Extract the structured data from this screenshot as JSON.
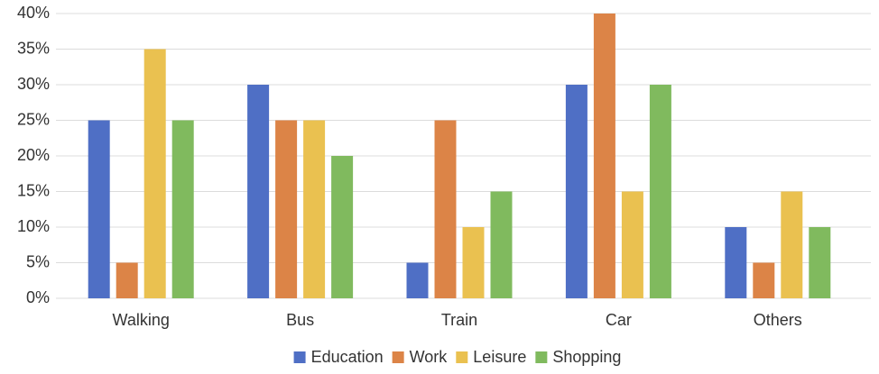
{
  "chart_data": {
    "type": "bar",
    "categories": [
      "Walking",
      "Bus",
      "Train",
      "Car",
      "Others"
    ],
    "series": [
      {
        "name": "Education",
        "color": "#4f6fc5",
        "values": [
          25,
          30,
          5,
          30,
          10
        ]
      },
      {
        "name": "Work",
        "color": "#dc8447",
        "values": [
          5,
          25,
          25,
          40,
          5
        ]
      },
      {
        "name": "Leisure",
        "color": "#eac150",
        "values": [
          35,
          25,
          10,
          15,
          15
        ]
      },
      {
        "name": "Shopping",
        "color": "#80ba5e",
        "values": [
          25,
          20,
          15,
          30,
          10
        ]
      }
    ],
    "ylim": [
      0,
      40
    ],
    "yticks": [
      {
        "value": 0,
        "label": "0%"
      },
      {
        "value": 5,
        "label": "5%"
      },
      {
        "value": 10,
        "label": "10%"
      },
      {
        "value": 15,
        "label": "15%"
      },
      {
        "value": 20,
        "label": "20%"
      },
      {
        "value": 25,
        "label": "25%"
      },
      {
        "value": 30,
        "label": "30%"
      },
      {
        "value": 35,
        "label": "35%"
      },
      {
        "value": 40,
        "label": "40%"
      }
    ],
    "grid": true,
    "legend": "bottom"
  }
}
